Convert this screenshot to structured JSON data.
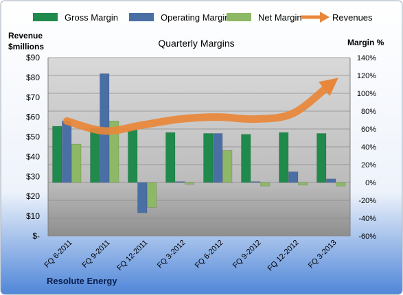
{
  "chart_data": {
    "type": "bar",
    "title": "Quarterly Margins",
    "left_axis_label_line1": "Revenue",
    "left_axis_label_line2": "$millions",
    "right_axis_label": "Margin %",
    "footer": "Resolute Energy",
    "categories": [
      "FQ 6-2011",
      "FQ 9-2011",
      "FQ 12-2011",
      "FQ 3-2012",
      "FQ 6-2012",
      "FQ 9-2012",
      "FQ 12-2012",
      "FQ 3-2013"
    ],
    "left_ylim": [
      0,
      90
    ],
    "left_ticks": [
      {
        "value": 0,
        "label": "$-"
      },
      {
        "value": 10,
        "label": "$10"
      },
      {
        "value": 20,
        "label": "$20"
      },
      {
        "value": 30,
        "label": "$30"
      },
      {
        "value": 40,
        "label": "$40"
      },
      {
        "value": 50,
        "label": "$50"
      },
      {
        "value": 60,
        "label": "$60"
      },
      {
        "value": 70,
        "label": "$70"
      },
      {
        "value": 80,
        "label": "$80"
      },
      {
        "value": 90,
        "label": "$90"
      }
    ],
    "right_ylim": [
      -60,
      140
    ],
    "right_ticks": [
      {
        "value": -60,
        "label": "-60%"
      },
      {
        "value": -40,
        "label": "-40%"
      },
      {
        "value": -20,
        "label": "-20%"
      },
      {
        "value": 0,
        "label": "0%"
      },
      {
        "value": 20,
        "label": "20%"
      },
      {
        "value": 40,
        "label": "40%"
      },
      {
        "value": 60,
        "label": "60%"
      },
      {
        "value": 80,
        "label": "80%"
      },
      {
        "value": 100,
        "label": "100%"
      },
      {
        "value": 120,
        "label": "120%"
      },
      {
        "value": 140,
        "label": "140%"
      }
    ],
    "legend_position": "top",
    "series": [
      {
        "name": "Gross Margin",
        "axis": "right",
        "kind": "bar",
        "color": "#1f8a4c",
        "values": [
          63,
          61,
          59,
          56,
          55,
          54,
          56,
          55
        ]
      },
      {
        "name": "Operating Margin",
        "axis": "right",
        "kind": "bar",
        "color": "#4a6fa5",
        "values": [
          69,
          122,
          -34,
          1,
          55,
          1,
          12,
          4
        ]
      },
      {
        "name": "Net Margin",
        "axis": "right",
        "kind": "bar",
        "color": "#8db865",
        "values": [
          43,
          69,
          -28,
          -2,
          36,
          -4,
          -3,
          -4
        ]
      },
      {
        "name": "Revenues",
        "axis": "left",
        "kind": "line",
        "color": "#e8873a",
        "values": [
          58,
          53,
          56,
          59,
          60,
          59,
          62,
          77
        ]
      }
    ]
  }
}
